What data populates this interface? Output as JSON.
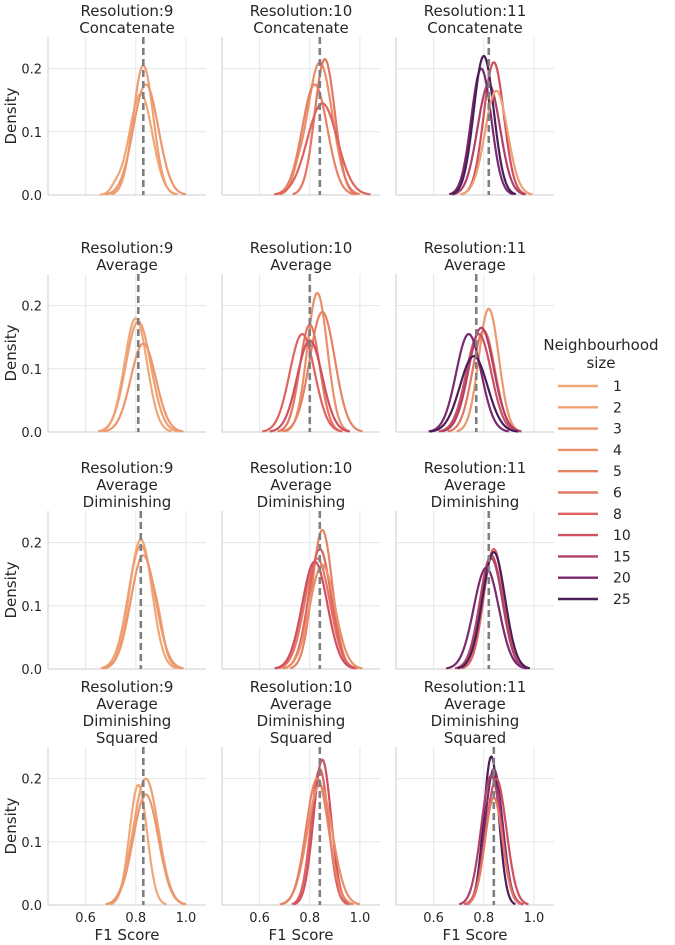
{
  "chart_data": {
    "type": "line",
    "kind": "kde-density-facet-grid",
    "xlabel": "F1 Score",
    "ylabel": "Density",
    "xlim": [
      0.45,
      1.08
    ],
    "ylim": [
      0,
      0.25
    ],
    "xticks": [
      "0.6",
      "0.8",
      "1.0"
    ],
    "yticks": [
      "0.0",
      "0.1",
      "0.2"
    ],
    "grid": true,
    "legend": {
      "title_lines": [
        "Neighbourhood",
        "size"
      ],
      "placement": "right",
      "entries": [
        {
          "label": "1",
          "color": "#f0a878"
        },
        {
          "label": "2",
          "color": "#eea073"
        },
        {
          "label": "3",
          "color": "#ec986e"
        },
        {
          "label": "4",
          "color": "#e98f69"
        },
        {
          "label": "5",
          "color": "#e78365"
        },
        {
          "label": "6",
          "color": "#e47662"
        },
        {
          "label": "8",
          "color": "#df6360"
        },
        {
          "label": "10",
          "color": "#d0505f"
        },
        {
          "label": "15",
          "color": "#b0426a"
        },
        {
          "label": "20",
          "color": "#7a2a6e"
        },
        {
          "label": "25",
          "color": "#4b1e58"
        }
      ]
    },
    "panels": [
      {
        "title_lines": [
          "Resolution:9",
          "Concatenate"
        ],
        "mean": 0.83,
        "series": [
          {
            "ref": 0,
            "peaks": [
              [
                0.82,
                0.046,
                0.16
              ],
              [
                0.72,
                0.02,
                0.01
              ]
            ]
          },
          {
            "ref": 1,
            "peaks": [
              [
                0.83,
                0.04,
                0.205
              ]
            ]
          },
          {
            "ref": 2,
            "peaks": [
              [
                0.84,
                0.05,
                0.175
              ]
            ]
          }
        ]
      },
      {
        "title_lines": [
          "Resolution:10",
          "Concatenate"
        ],
        "mean": 0.84,
        "series": [
          {
            "ref": 3,
            "peaks": [
              [
                0.84,
                0.05,
                0.21
              ],
              [
                0.75,
                0.02,
                0.015
              ]
            ]
          },
          {
            "ref": 4,
            "peaks": [
              [
                0.82,
                0.05,
                0.175
              ]
            ]
          },
          {
            "ref": 5,
            "peaks": [
              [
                0.86,
                0.04,
                0.215
              ]
            ]
          },
          {
            "ref": 6,
            "peaks": [
              [
                0.85,
                0.06,
                0.145
              ]
            ]
          }
        ]
      },
      {
        "title_lines": [
          "Resolution:11",
          "Concatenate"
        ],
        "mean": 0.82,
        "series": [
          {
            "ref": 7,
            "peaks": [
              [
                0.84,
                0.04,
                0.21
              ]
            ]
          },
          {
            "ref": 8,
            "peaks": [
              [
                0.82,
                0.045,
                0.175
              ]
            ]
          },
          {
            "ref": 9,
            "peaks": [
              [
                0.79,
                0.04,
                0.2
              ]
            ]
          },
          {
            "ref": 10,
            "peaks": [
              [
                0.8,
                0.04,
                0.22
              ]
            ]
          },
          {
            "ref": 1,
            "peaks": [
              [
                0.85,
                0.045,
                0.165
              ]
            ]
          }
        ]
      },
      {
        "title_lines": [
          "Resolution:9",
          "Average"
        ],
        "mean": 0.81,
        "series": [
          {
            "ref": 0,
            "peaks": [
              [
                0.8,
                0.045,
                0.18
              ]
            ]
          },
          {
            "ref": 1,
            "peaks": [
              [
                0.81,
                0.05,
                0.175
              ]
            ]
          },
          {
            "ref": 2,
            "peaks": [
              [
                0.83,
                0.05,
                0.14
              ]
            ]
          }
        ]
      },
      {
        "title_lines": [
          "Resolution:10",
          "Average"
        ],
        "mean": 0.8,
        "series": [
          {
            "ref": 3,
            "peaks": [
              [
                0.83,
                0.04,
                0.22
              ]
            ]
          },
          {
            "ref": 4,
            "peaks": [
              [
                0.85,
                0.05,
                0.19
              ]
            ]
          },
          {
            "ref": 5,
            "peaks": [
              [
                0.8,
                0.04,
                0.17
              ]
            ]
          },
          {
            "ref": 6,
            "peaks": [
              [
                0.77,
                0.05,
                0.155
              ]
            ]
          },
          {
            "ref": 7,
            "peaks": [
              [
                0.8,
                0.05,
                0.145
              ]
            ]
          }
        ]
      },
      {
        "title_lines": [
          "Resolution:11",
          "Average"
        ],
        "mean": 0.77,
        "series": [
          {
            "ref": 2,
            "peaks": [
              [
                0.82,
                0.04,
                0.195
              ]
            ]
          },
          {
            "ref": 5,
            "peaks": [
              [
                0.8,
                0.045,
                0.16
              ]
            ]
          },
          {
            "ref": 7,
            "peaks": [
              [
                0.78,
                0.05,
                0.155
              ]
            ]
          },
          {
            "ref": 8,
            "peaks": [
              [
                0.79,
                0.05,
                0.165
              ]
            ]
          },
          {
            "ref": 9,
            "peaks": [
              [
                0.74,
                0.05,
                0.155
              ]
            ]
          },
          {
            "ref": 10,
            "peaks": [
              [
                0.76,
                0.055,
                0.12
              ]
            ]
          }
        ]
      },
      {
        "title_lines": [
          "Resolution:9",
          "Average",
          "Diminishing"
        ],
        "mean": 0.82,
        "series": [
          {
            "ref": 0,
            "peaks": [
              [
                0.82,
                0.045,
                0.205
              ]
            ]
          },
          {
            "ref": 1,
            "peaks": [
              [
                0.82,
                0.05,
                0.195
              ],
              [
                0.89,
                0.02,
                0.025
              ]
            ]
          },
          {
            "ref": 2,
            "peaks": [
              [
                0.83,
                0.05,
                0.18
              ]
            ]
          }
        ]
      },
      {
        "title_lines": [
          "Resolution:10",
          "Average",
          "Diminishing"
        ],
        "mean": 0.84,
        "series": [
          {
            "ref": 4,
            "peaks": [
              [
                0.85,
                0.04,
                0.22
              ]
            ]
          },
          {
            "ref": 5,
            "peaks": [
              [
                0.83,
                0.05,
                0.175
              ]
            ]
          },
          {
            "ref": 6,
            "peaks": [
              [
                0.84,
                0.045,
                0.19
              ]
            ]
          },
          {
            "ref": 7,
            "peaks": [
              [
                0.82,
                0.05,
                0.17
              ]
            ]
          },
          {
            "ref": 3,
            "peaks": [
              [
                0.85,
                0.05,
                0.165
              ]
            ]
          }
        ]
      },
      {
        "title_lines": [
          "Resolution:11",
          "Average",
          "Diminishing"
        ],
        "mean": 0.82,
        "series": [
          {
            "ref": 6,
            "peaks": [
              [
                0.84,
                0.04,
                0.19
              ]
            ]
          },
          {
            "ref": 7,
            "peaks": [
              [
                0.83,
                0.045,
                0.18
              ]
            ]
          },
          {
            "ref": 8,
            "peaks": [
              [
                0.83,
                0.045,
                0.175
              ]
            ]
          },
          {
            "ref": 9,
            "peaks": [
              [
                0.81,
                0.05,
                0.16
              ]
            ]
          },
          {
            "ref": 10,
            "peaks": [
              [
                0.84,
                0.045,
                0.185
              ]
            ]
          }
        ]
      },
      {
        "title_lines": [
          "Resolution:9",
          "Average",
          "Diminishing",
          "Squared"
        ],
        "mean": 0.83,
        "series": [
          {
            "ref": 0,
            "peaks": [
              [
                0.81,
                0.035,
                0.19
              ]
            ]
          },
          {
            "ref": 1,
            "peaks": [
              [
                0.84,
                0.05,
                0.2
              ]
            ]
          },
          {
            "ref": 2,
            "peaks": [
              [
                0.84,
                0.05,
                0.175
              ]
            ]
          }
        ]
      },
      {
        "title_lines": [
          "Resolution:10",
          "Average",
          "Diminishing",
          "Squared"
        ],
        "mean": 0.84,
        "series": [
          {
            "ref": 6,
            "peaks": [
              [
                0.84,
                0.035,
                0.215
              ]
            ]
          },
          {
            "ref": 7,
            "peaks": [
              [
                0.85,
                0.035,
                0.23
              ]
            ]
          },
          {
            "ref": 3,
            "peaks": [
              [
                0.84,
                0.05,
                0.19
              ]
            ]
          },
          {
            "ref": 4,
            "peaks": [
              [
                0.83,
                0.045,
                0.2
              ]
            ]
          }
        ]
      },
      {
        "title_lines": [
          "Resolution:11",
          "Average",
          "Diminishing",
          "Squared"
        ],
        "mean": 0.84,
        "series": [
          {
            "ref": 10,
            "peaks": [
              [
                0.83,
                0.03,
                0.235
              ]
            ]
          },
          {
            "ref": 9,
            "peaks": [
              [
                0.84,
                0.035,
                0.215
              ]
            ]
          },
          {
            "ref": 8,
            "peaks": [
              [
                0.83,
                0.04,
                0.205
              ]
            ]
          },
          {
            "ref": 7,
            "peaks": [
              [
                0.85,
                0.04,
                0.2
              ]
            ]
          },
          {
            "ref": 5,
            "peaks": [
              [
                0.84,
                0.035,
                0.17
              ]
            ]
          }
        ]
      }
    ]
  }
}
